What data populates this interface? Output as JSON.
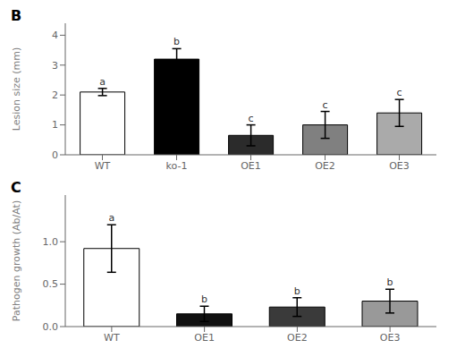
{
  "chart_data": [
    {
      "type": "bar",
      "title": "B",
      "categories": [
        "WT",
        "ko-1",
        "OE1",
        "OE2",
        "OE3"
      ],
      "values": [
        2.1,
        3.2,
        0.65,
        1.0,
        1.4
      ],
      "errors": [
        0.12,
        0.35,
        0.35,
        0.45,
        0.45
      ],
      "colors": [
        "#ffffff",
        "#000000",
        "#2b2b2b",
        "#808080",
        "#aaaaaa"
      ],
      "annotations": [
        "a",
        "b",
        "c",
        "c",
        "c"
      ],
      "y_label": "Lesion size (mm)",
      "ylim": [
        0,
        4.4
      ],
      "yticks": [
        0,
        1,
        2,
        3,
        4
      ]
    },
    {
      "type": "bar",
      "title": "C",
      "categories": [
        "WT",
        "OE1",
        "OE2",
        "OE3"
      ],
      "values": [
        0.92,
        0.15,
        0.23,
        0.3
      ],
      "errors": [
        0.28,
        0.09,
        0.11,
        0.14
      ],
      "colors": [
        "#ffffff",
        "#111111",
        "#3a3a3a",
        "#999999"
      ],
      "annotations": [
        "a",
        "b",
        "b",
        "b"
      ],
      "y_label": "Pathogen growth (Ab/At)",
      "ylim": [
        0,
        1.55
      ],
      "yticks": [
        {
          "value": 0,
          "label": "0.0"
        },
        0.5,
        {
          "value": 1,
          "label": "1.0"
        }
      ]
    }
  ]
}
